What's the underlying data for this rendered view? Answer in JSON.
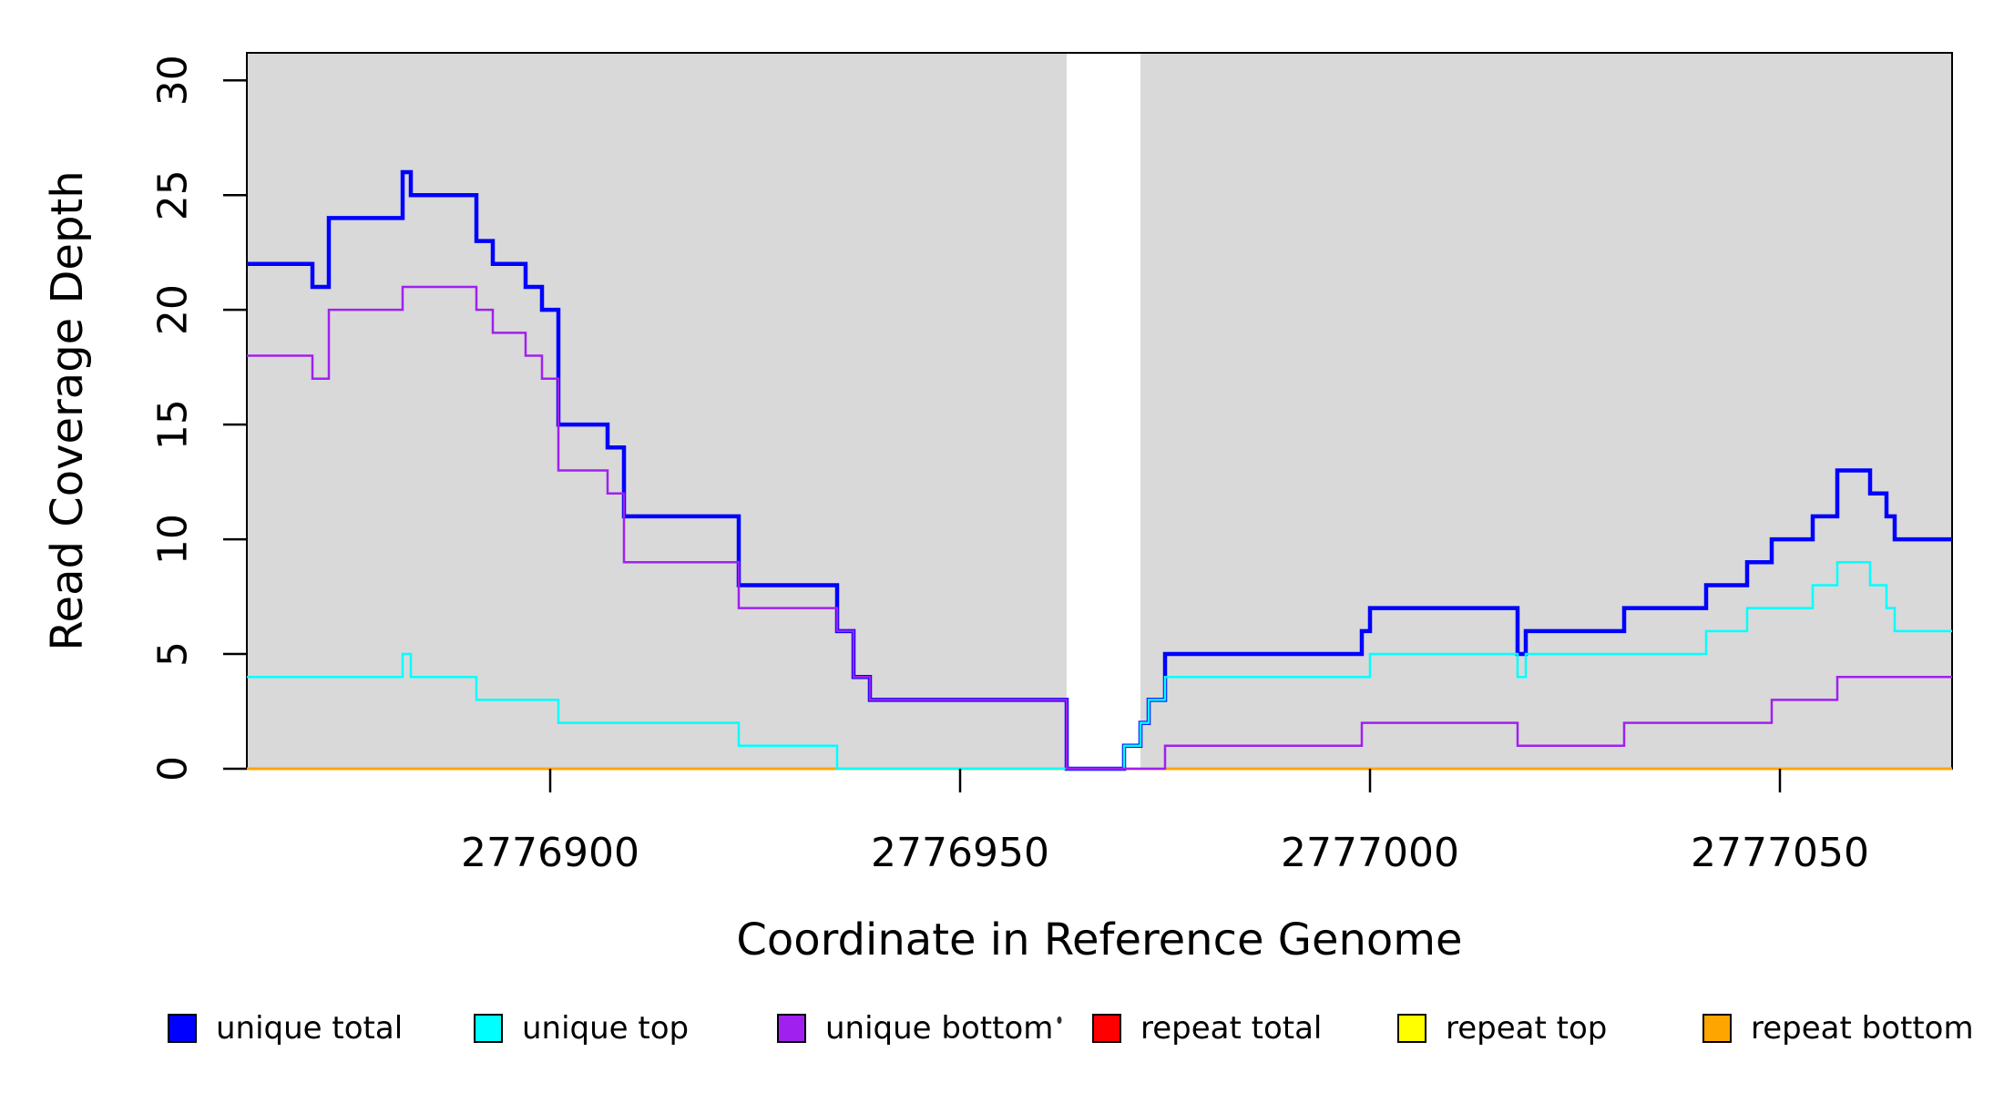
{
  "figure": {
    "background": "#ffffff",
    "band_color": "#d9d9d9",
    "box_color": "#000000"
  },
  "chart_data": {
    "type": "line",
    "subtype": "step-after",
    "title": "",
    "xlabel": "Coordinate in Reference Genome",
    "ylabel": "Read Coverage Depth",
    "xlim": [
      2776863,
      2777071
    ],
    "ylim": [
      0,
      31.2
    ],
    "grid": false,
    "x_ticks": [
      {
        "value": 2776900,
        "label": "2776900"
      },
      {
        "value": 2776950,
        "label": "2776950"
      },
      {
        "value": 2777000,
        "label": "2777000"
      },
      {
        "value": 2777050,
        "label": "2777050"
      }
    ],
    "y_ticks": [
      {
        "value": 0,
        "label": "0"
      },
      {
        "value": 5,
        "label": "5"
      },
      {
        "value": 10,
        "label": "10"
      },
      {
        "value": 15,
        "label": "15"
      },
      {
        "value": 20,
        "label": "20"
      },
      {
        "value": 25,
        "label": "25"
      },
      {
        "value": 30,
        "label": "30"
      }
    ],
    "shaded_regions": [
      [
        2776863,
        2776963
      ],
      [
        2776972,
        2777071
      ]
    ],
    "gap_region": [
      2776963,
      2776972
    ],
    "draw_order": [
      "repeat total",
      "repeat top",
      "repeat bottom",
      "unique total",
      "unique top",
      "unique bottom"
    ],
    "series": [
      {
        "name": "unique total",
        "color": "#0000ff",
        "line_width": 4.5,
        "steps": [
          [
            2776863,
            22
          ],
          [
            2776871,
            21
          ],
          [
            2776873,
            24
          ],
          [
            2776882,
            26
          ],
          [
            2776883,
            25
          ],
          [
            2776891,
            23
          ],
          [
            2776893,
            22
          ],
          [
            2776897,
            21
          ],
          [
            2776899,
            20
          ],
          [
            2776901,
            15
          ],
          [
            2776907,
            14
          ],
          [
            2776909,
            11
          ],
          [
            2776923,
            8
          ],
          [
            2776935,
            6
          ],
          [
            2776937,
            4
          ],
          [
            2776939,
            3
          ],
          [
            2776963,
            0
          ],
          [
            2776970,
            1
          ],
          [
            2776972,
            2
          ],
          [
            2776973,
            3
          ],
          [
            2776975,
            5
          ],
          [
            2776999,
            6
          ],
          [
            2777000,
            7
          ],
          [
            2777018,
            5
          ],
          [
            2777019,
            6
          ],
          [
            2777031,
            7
          ],
          [
            2777041,
            8
          ],
          [
            2777046,
            9
          ],
          [
            2777049,
            10
          ],
          [
            2777054,
            11
          ],
          [
            2777057,
            13
          ],
          [
            2777061,
            12
          ],
          [
            2777063,
            11
          ],
          [
            2777064,
            10
          ]
        ]
      },
      {
        "name": "unique top",
        "color": "#00ffff",
        "line_width": 2.5,
        "steps": [
          [
            2776863,
            4
          ],
          [
            2776882,
            5
          ],
          [
            2776883,
            4
          ],
          [
            2776891,
            3
          ],
          [
            2776901,
            2
          ],
          [
            2776923,
            1
          ],
          [
            2776935,
            0
          ],
          [
            2776970,
            1
          ],
          [
            2776972,
            2
          ],
          [
            2776973,
            3
          ],
          [
            2776975,
            4
          ],
          [
            2777000,
            5
          ],
          [
            2777018,
            4
          ],
          [
            2777019,
            5
          ],
          [
            2777041,
            6
          ],
          [
            2777046,
            7
          ],
          [
            2777054,
            8
          ],
          [
            2777057,
            9
          ],
          [
            2777061,
            8
          ],
          [
            2777063,
            7
          ],
          [
            2777064,
            6
          ]
        ]
      },
      {
        "name": "unique bottom",
        "color": "#a020f0",
        "line_width": 2.5,
        "steps": [
          [
            2776863,
            18
          ],
          [
            2776871,
            17
          ],
          [
            2776873,
            20
          ],
          [
            2776882,
            21
          ],
          [
            2776891,
            20
          ],
          [
            2776893,
            19
          ],
          [
            2776897,
            18
          ],
          [
            2776899,
            17
          ],
          [
            2776901,
            13
          ],
          [
            2776907,
            12
          ],
          [
            2776909,
            9
          ],
          [
            2776923,
            7
          ],
          [
            2776935,
            6
          ],
          [
            2776937,
            4
          ],
          [
            2776939,
            3
          ],
          [
            2776963,
            0
          ],
          [
            2776975,
            1
          ],
          [
            2776999,
            2
          ],
          [
            2777018,
            1
          ],
          [
            2777031,
            2
          ],
          [
            2777049,
            3
          ],
          [
            2777057,
            4
          ]
        ]
      },
      {
        "name": "repeat total",
        "color": "#ff0000",
        "line_width": 2.8,
        "steps": [
          [
            2776863,
            0
          ]
        ]
      },
      {
        "name": "repeat top",
        "color": "#ffff00",
        "line_width": 2.8,
        "steps": [
          [
            2776863,
            0
          ]
        ]
      },
      {
        "name": "repeat bottom",
        "color": "#ffa500",
        "line_width": 2.8,
        "steps": [
          [
            2776863,
            0
          ]
        ]
      }
    ],
    "legend": {
      "position": "bottom",
      "items": [
        {
          "label": "unique total",
          "color": "#0000ff"
        },
        {
          "label": "unique top",
          "color": "#00ffff"
        },
        {
          "label": "unique bottom",
          "color": "#a020f0"
        },
        {
          "label": "repeat total",
          "color": "#ff0000"
        },
        {
          "label": "repeat top",
          "color": "#ffff00"
        },
        {
          "label": "repeat bottom",
          "color": "#ffa500"
        }
      ]
    }
  }
}
